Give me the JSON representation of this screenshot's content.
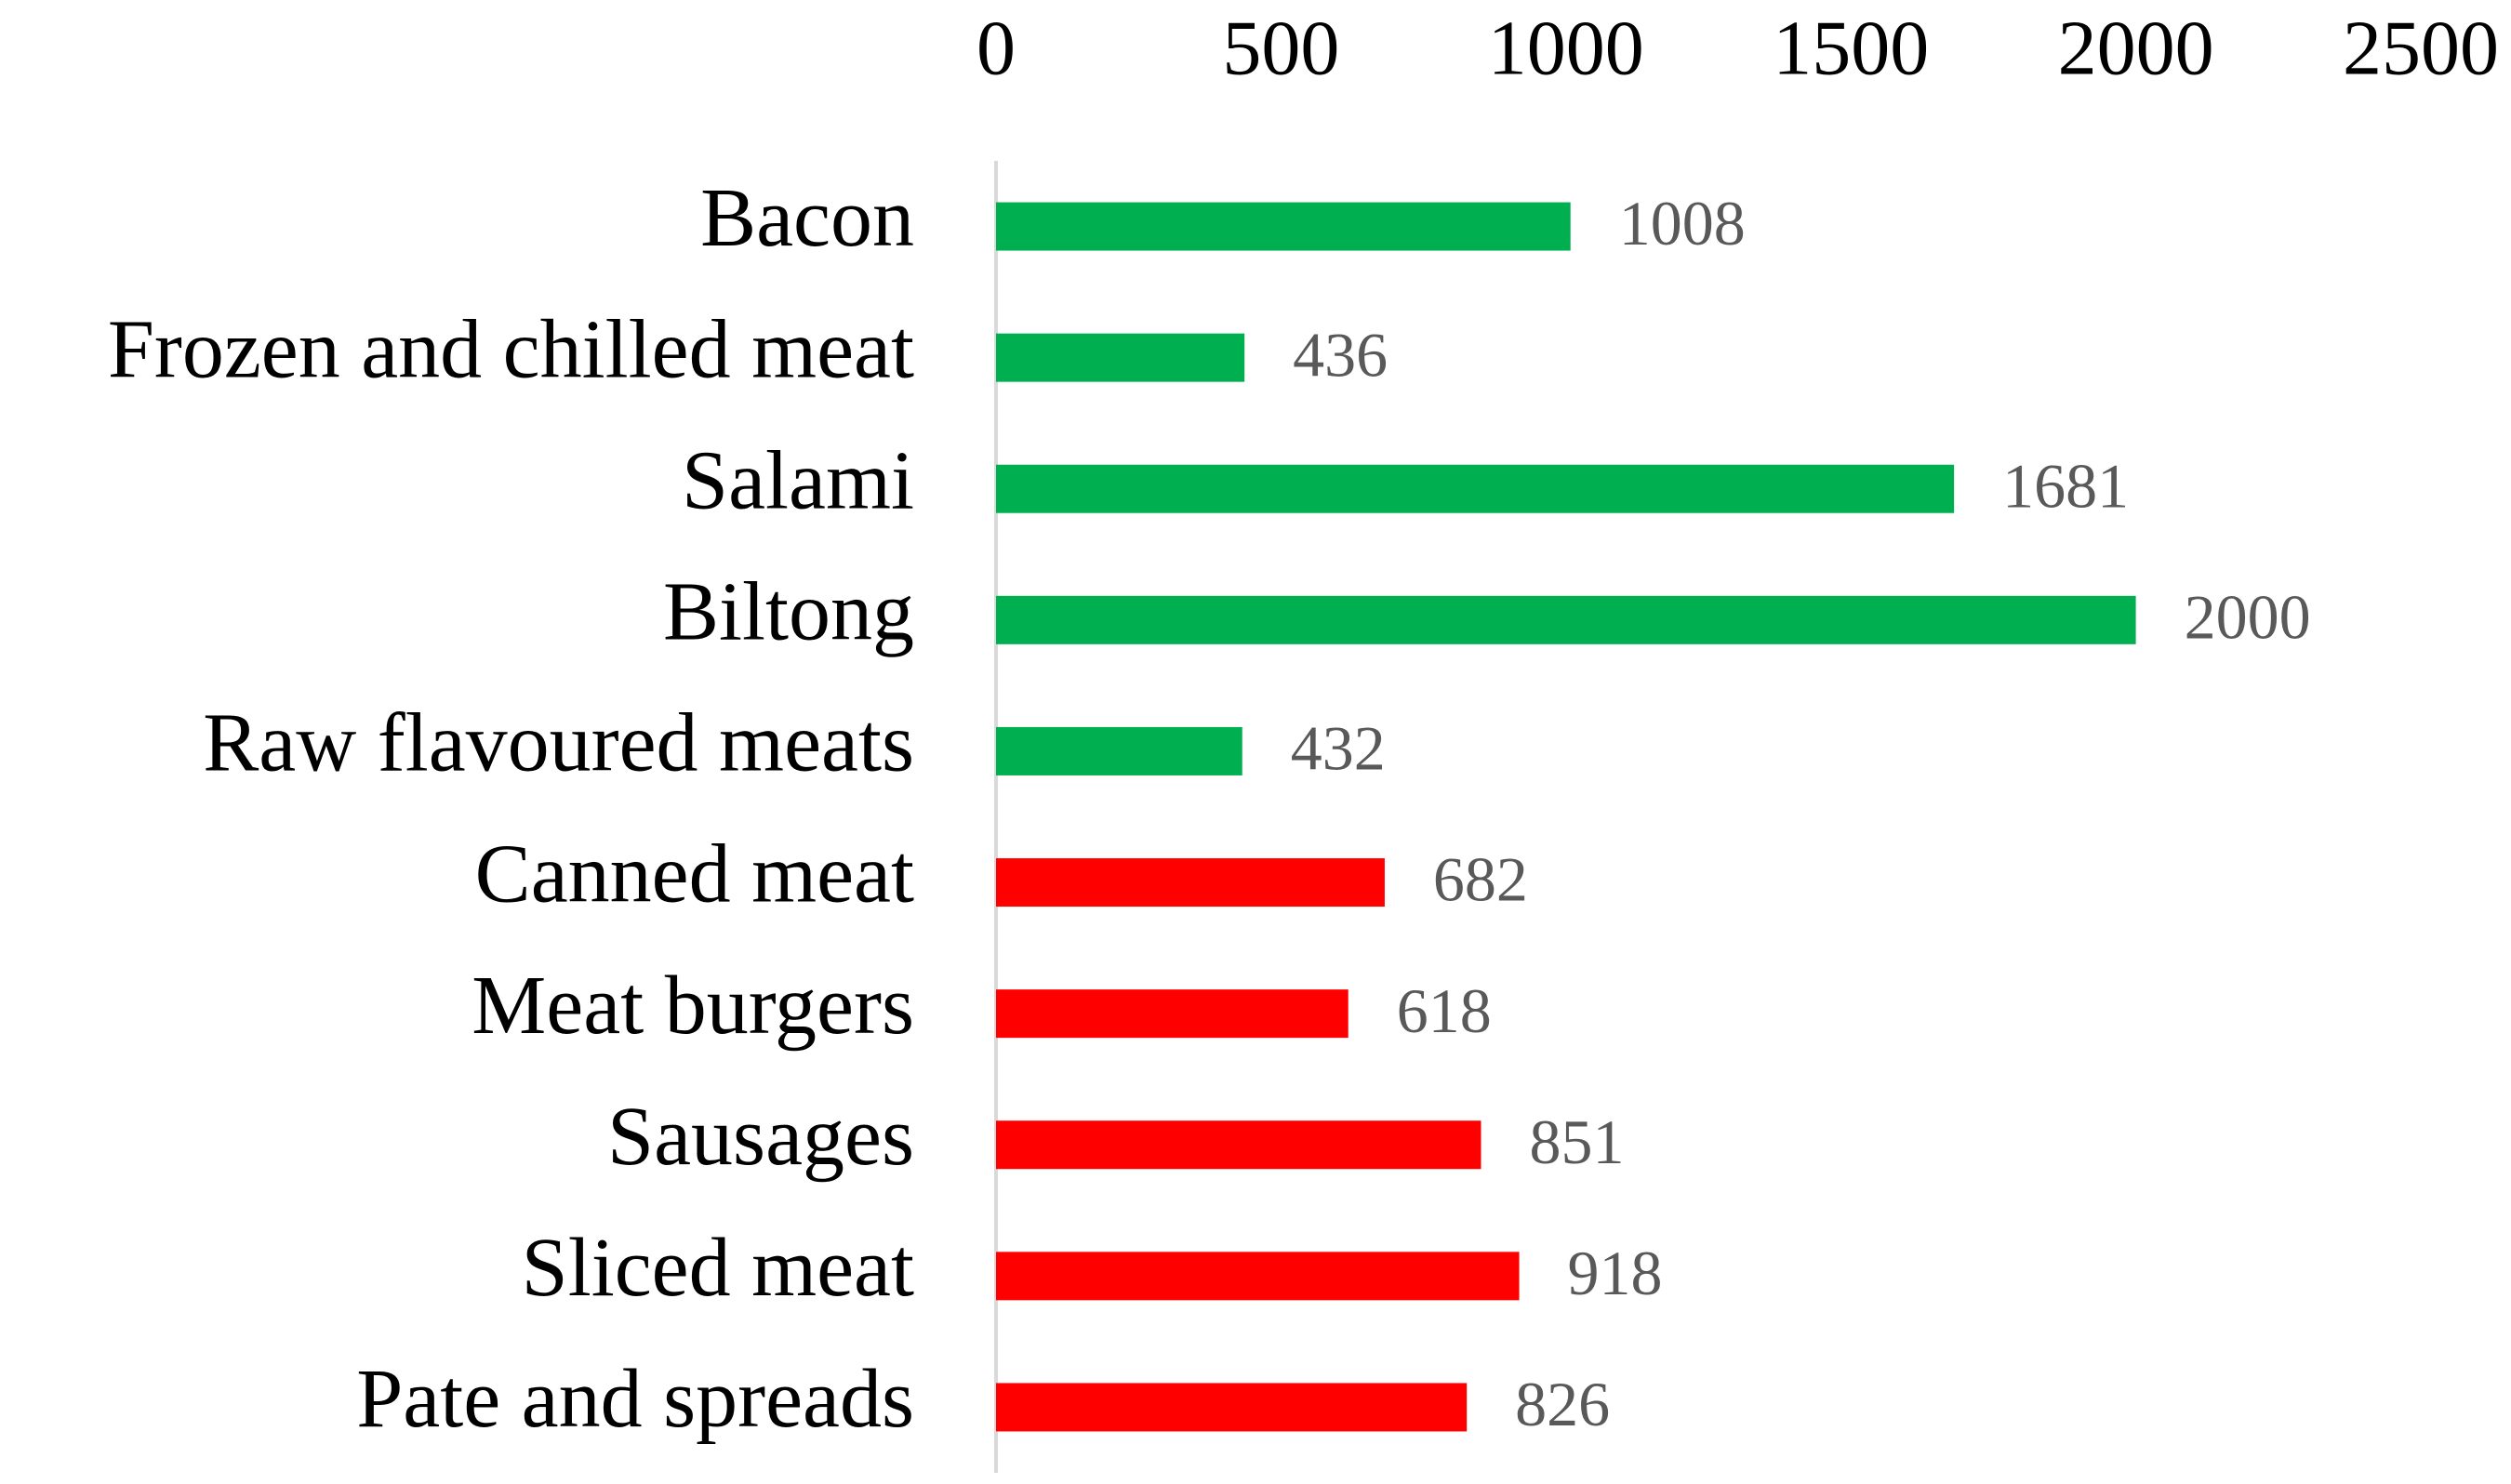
{
  "chart_data": {
    "type": "bar",
    "orientation": "horizontal",
    "categories": [
      "Bacon",
      "Frozen and chilled meat",
      "Salami",
      "Biltong",
      "Raw flavoured meats",
      "Canned meat",
      "Meat burgers",
      "Sausages",
      "Sliced meat",
      "Pate and spreads"
    ],
    "values": [
      1008,
      436,
      1681,
      2000,
      432,
      682,
      618,
      851,
      918,
      826
    ],
    "colors": [
      "#00b050",
      "#00b050",
      "#00b050",
      "#00b050",
      "#00b050",
      "#ff0000",
      "#ff0000",
      "#ff0000",
      "#ff0000",
      "#ff0000"
    ],
    "xlim": [
      0,
      2500
    ],
    "xticks": [
      0,
      500,
      1000,
      1500,
      2000,
      2500
    ],
    "axis_position": "top",
    "grid": false
  }
}
